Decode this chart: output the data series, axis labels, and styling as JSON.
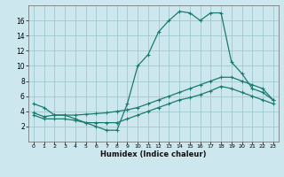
{
  "title": "",
  "xlabel": "Humidex (Indice chaleur)",
  "background_color": "#cce8ee",
  "grid_color": "#a0c8d0",
  "line_color": "#1a7a6e",
  "xlim": [
    -0.5,
    23.5
  ],
  "ylim": [
    0,
    18
  ],
  "xticks": [
    0,
    1,
    2,
    3,
    4,
    5,
    6,
    7,
    8,
    9,
    10,
    11,
    12,
    13,
    14,
    15,
    16,
    17,
    18,
    19,
    20,
    21,
    22,
    23
  ],
  "yticks": [
    2,
    4,
    6,
    8,
    10,
    12,
    14,
    16
  ],
  "line1_x": [
    0,
    1,
    2,
    3,
    4,
    5,
    6,
    7,
    8,
    9,
    10,
    11,
    12,
    13,
    14,
    15,
    16,
    17,
    18,
    19,
    20,
    21,
    22,
    23
  ],
  "line1_y": [
    5.0,
    4.5,
    3.5,
    3.5,
    3.0,
    2.5,
    2.0,
    1.5,
    1.5,
    5.0,
    10.0,
    11.5,
    14.5,
    16.0,
    17.2,
    17.0,
    16.0,
    17.0,
    17.0,
    10.5,
    9.0,
    7.0,
    6.5,
    5.5
  ],
  "line2_x": [
    0,
    1,
    2,
    3,
    4,
    5,
    6,
    7,
    8,
    9,
    10,
    11,
    12,
    13,
    14,
    15,
    16,
    17,
    18,
    19,
    20,
    21,
    22,
    23
  ],
  "line2_y": [
    3.8,
    3.3,
    3.5,
    3.5,
    3.5,
    3.6,
    3.7,
    3.8,
    4.0,
    4.2,
    4.5,
    5.0,
    5.5,
    6.0,
    6.5,
    7.0,
    7.5,
    8.0,
    8.5,
    8.5,
    8.0,
    7.5,
    7.0,
    5.5
  ],
  "line3_x": [
    0,
    1,
    2,
    3,
    4,
    5,
    6,
    7,
    8,
    9,
    10,
    11,
    12,
    13,
    14,
    15,
    16,
    17,
    18,
    19,
    20,
    21,
    22,
    23
  ],
  "line3_y": [
    3.5,
    3.0,
    3.0,
    3.0,
    2.8,
    2.5,
    2.5,
    2.5,
    2.5,
    3.0,
    3.5,
    4.0,
    4.5,
    5.0,
    5.5,
    5.8,
    6.2,
    6.7,
    7.3,
    7.0,
    6.5,
    6.0,
    5.5,
    5.0
  ]
}
